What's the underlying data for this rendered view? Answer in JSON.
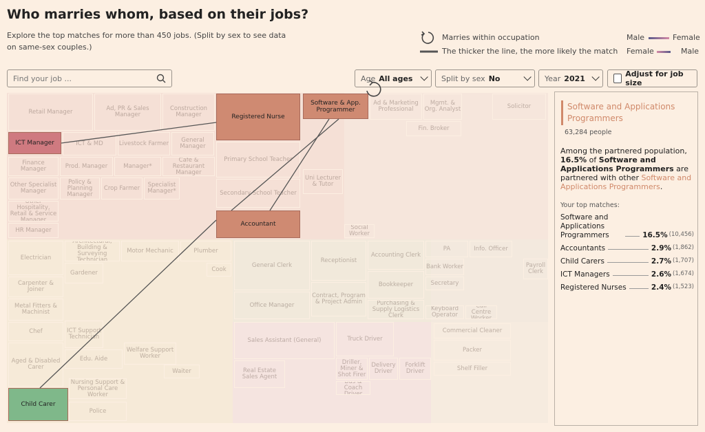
{
  "header": {
    "title": "Who marries whom, based on their jobs?",
    "subtitle": "Explore the top matches for more than 450 jobs. (Split by sex to see data on same-sex couples.)"
  },
  "legend": {
    "within": "Marries within occupation",
    "thickness": "The thicker the line, the more likely the match",
    "row1": [
      "Male",
      "Female"
    ],
    "row2": [
      "Female",
      "Male"
    ]
  },
  "controls": {
    "search": "Find your job ...",
    "age_label": "Age",
    "age_value": "All ages",
    "split_label": "Split by sex",
    "split_value": "No",
    "year_label": "Year",
    "year_value": "2021",
    "adjust": "Adjust for job size"
  },
  "treemap": {
    "cells": [
      "Retail Manager",
      "Ad, PR & Sales Manager",
      "Construction Manager",
      "Ad & Marketing Professional",
      "Mgmt. & Org. Analyst",
      "Solicitor",
      "Fin. Broker",
      "ICT & MD",
      "Livestock Farmer",
      "General Manager",
      "Finance Manager",
      "Prod. Manager",
      "Manager*",
      "Cafe & Restaurant Manager",
      "Primary School Teacher",
      "Other Specialist Manager",
      "Policy & Planning Manager",
      "Crop Farmer",
      "Specialist Manager*",
      "Uni Lecturer & Tutor",
      "Secondary School Teacher",
      "Other Hospitality, Retail & Service Manager",
      "HR Manager",
      "Social Worker",
      "Electrician",
      "Architectural, Building & Surveying Technician",
      "Motor Mechanic",
      "Plumber",
      "Gardener",
      "Cook",
      "General Clerk",
      "Receptionist",
      "Accounting Clerk",
      "PA",
      "Info. Officer",
      "Bank Worker",
      "Payroll Clerk",
      "Secretary",
      "Carpenter & Joiner",
      "Bookkeeper",
      "Office Manager",
      "Contract, Program & Project Admin",
      "Metal Fitters & Machinist",
      "Purchasing & Supply Logistics Clerk",
      "Keyboard Operator",
      "Call Centre Worker",
      "Chef",
      "ICT Support Technician",
      "Commercial Cleaner",
      "Sales Assistant (General)",
      "Truck Driver",
      "Aged & Disabled Carer",
      "Welfare Support Worker",
      "Edu. Aide",
      "Packer",
      "Driller, Miner & Shot Firer",
      "Delivery Driver",
      "Forklift Driver",
      "Shelf Filler",
      "Waiter",
      "Real Estate Sales Agent",
      "Nursing Support & Personal Care Worker",
      "Bus & Coach Driver",
      "Police"
    ],
    "highlighted": [
      "Registered Nurse",
      "Software & App. Programmer",
      "ICT Manager",
      "Accountant",
      "Child Carer"
    ]
  },
  "panel": {
    "title": "Software and Applications Programmers",
    "people": "63,284 people",
    "sentence": [
      "Among the partnered population,",
      "16.5%",
      "of",
      "Software and Applications Programmers",
      "are partnered with other",
      "Software and Applications Programmers",
      "."
    ],
    "matches_heading": "Your top matches:",
    "matches": [
      {
        "name": "Software and Applications Programmers",
        "pct": "16.5%",
        "count": "(10,456)"
      },
      {
        "name": "Accountants",
        "pct": "2.9%",
        "count": "(1,862)"
      },
      {
        "name": "Child Carers",
        "pct": "2.7%",
        "count": "(1,707)"
      },
      {
        "name": "ICT Managers",
        "pct": "2.6%",
        "count": "(1,674)"
      },
      {
        "name": "Registered Nurses",
        "pct": "2.4%",
        "count": "(1,523)"
      }
    ]
  }
}
